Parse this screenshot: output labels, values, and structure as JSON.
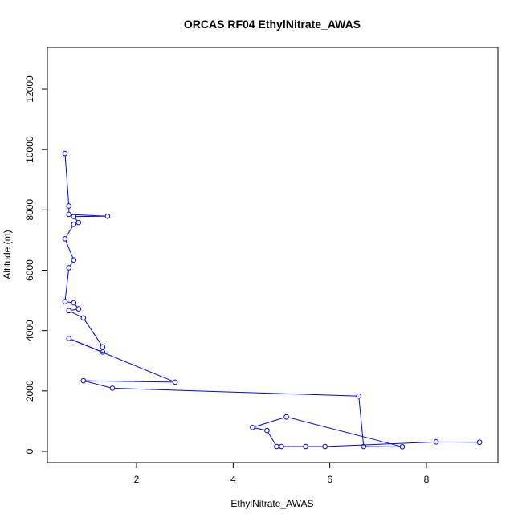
{
  "chart_data": {
    "type": "line",
    "title": "ORCAS RF04 EthylNitrate_AWAS",
    "xlabel": "EthylNitrate_AWAS",
    "ylabel": "Altitude (m)",
    "xlim": [
      0.5,
      9.1
    ],
    "ylim": [
      150,
      12900
    ],
    "x_ticks": [
      2,
      4,
      6,
      8
    ],
    "y_ticks": [
      0,
      2000,
      4000,
      6000,
      8000,
      10000,
      12000
    ],
    "series": [
      {
        "color": "#0000ff",
        "marker": "open-circle",
        "points": [
          {
            "x": 0.52,
            "y": 9870
          },
          {
            "x": 0.6,
            "y": 8130
          },
          {
            "x": 0.6,
            "y": 7850
          },
          {
            "x": 1.4,
            "y": 7790
          },
          {
            "x": 0.7,
            "y": 7780
          },
          {
            "x": 0.8,
            "y": 7580
          },
          {
            "x": 0.7,
            "y": 7520
          },
          {
            "x": 0.52,
            "y": 7040
          },
          {
            "x": 0.7,
            "y": 6340
          },
          {
            "x": 0.6,
            "y": 6080
          },
          {
            "x": 0.52,
            "y": 4960
          },
          {
            "x": 0.7,
            "y": 4920
          },
          {
            "x": 0.8,
            "y": 4720
          },
          {
            "x": 0.6,
            "y": 4660
          },
          {
            "x": 0.9,
            "y": 4420
          },
          {
            "x": 1.3,
            "y": 3460
          },
          {
            "x": 1.3,
            "y": 3290
          },
          {
            "x": 0.6,
            "y": 3740
          },
          {
            "x": 2.8,
            "y": 2290
          },
          {
            "x": 0.9,
            "y": 2340
          },
          {
            "x": 1.5,
            "y": 2090
          },
          {
            "x": 6.6,
            "y": 1830
          },
          {
            "x": 6.7,
            "y": 160
          },
          {
            "x": 7.5,
            "y": 150
          },
          {
            "x": 5.1,
            "y": 1140
          },
          {
            "x": 4.4,
            "y": 790
          },
          {
            "x": 4.7,
            "y": 690
          },
          {
            "x": 4.9,
            "y": 160
          },
          {
            "x": 5.0,
            "y": 160
          },
          {
            "x": 5.5,
            "y": 160
          },
          {
            "x": 5.9,
            "y": 160
          },
          {
            "x": 8.2,
            "y": 310
          },
          {
            "x": 9.1,
            "y": 300
          }
        ]
      }
    ],
    "grid": false,
    "legend": "none"
  }
}
